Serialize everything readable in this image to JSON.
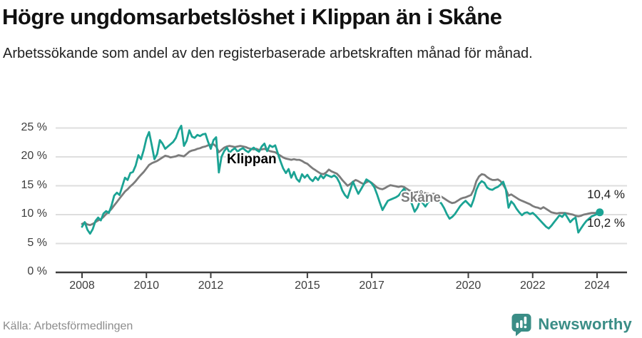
{
  "header": {
    "title": "Högre ungdomsarbetslöshet i Klippan än i Skåne",
    "subtitle": "Arbetssökande som andel av den registerbaserade arbetskraften månad för månad."
  },
  "footer": {
    "source": "Källa: Arbetsförmedlingen",
    "brand": "Newsworthy"
  },
  "colors": {
    "klippan_line": "#1ba394",
    "skane_line": "#7c7c7c",
    "brand_teal": "#3a8d86",
    "gridline": "#dedede",
    "axis": "#3d3d3d",
    "title_text": "#111111",
    "source_text": "#8c8c8c"
  },
  "chart_data": {
    "type": "line",
    "title": "Högre ungdomsarbetslöshet i Klippan än i Skåne",
    "subtitle": "Arbetssökande som andel av den registerbaserade arbetskraften månad för månad.",
    "x_start": "2008-01",
    "x_end": "2024-02",
    "x_frequency": "monthly",
    "ylim": [
      0,
      26
    ],
    "grid": true,
    "legend_position": "inline",
    "y_ticks": [
      {
        "value": 25,
        "label": "25 %"
      },
      {
        "value": 20,
        "label": "20 %"
      },
      {
        "value": 15,
        "label": "15 %"
      },
      {
        "value": 10,
        "label": "10 %"
      },
      {
        "value": 5,
        "label": "5 %"
      },
      {
        "value": 0,
        "label": "0 %"
      }
    ],
    "x_ticks": [
      {
        "value": 2008,
        "label": "2008"
      },
      {
        "value": 2010,
        "label": "2010"
      },
      {
        "value": 2012,
        "label": "2012"
      },
      {
        "value": 2015,
        "label": "2015"
      },
      {
        "value": 2017,
        "label": "2017"
      },
      {
        "value": 2020,
        "label": "2020"
      },
      {
        "value": 2022,
        "label": "2022"
      },
      {
        "value": 2024,
        "label": "2024"
      }
    ],
    "series": [
      {
        "name": "Klippan",
        "color": "#1ba394",
        "end_label": "10,4 %",
        "end_value": 10.4,
        "end_dot": true,
        "values": [
          7.9,
          8.7,
          7.4,
          6.7,
          7.5,
          8.9,
          9.5,
          9.0,
          10.2,
          10.6,
          10.3,
          11.6,
          13.3,
          13.8,
          13.4,
          14.9,
          16.4,
          16.0,
          17.2,
          17.4,
          18.5,
          20.3,
          19.6,
          21.2,
          23.2,
          24.3,
          22.0,
          19.6,
          20.5,
          22.9,
          22.3,
          21.4,
          21.8,
          22.2,
          22.6,
          23.3,
          24.6,
          25.4,
          21.9,
          22.8,
          24.6,
          23.5,
          23.3,
          23.8,
          23.6,
          23.9,
          24.0,
          22.6,
          21.4,
          22.9,
          23.4,
          17.3,
          20.0,
          21.0,
          21.6,
          20.7,
          21.2,
          21.5,
          20.9,
          21.3,
          21.5,
          21.1,
          20.8,
          21.3,
          21.6,
          21.2,
          20.9,
          21.8,
          22.3,
          21.0,
          22.0,
          21.7,
          22.0,
          20.6,
          19.2,
          18.0,
          17.2,
          17.9,
          16.4,
          17.4,
          16.2,
          15.7,
          17.0,
          16.4,
          16.9,
          16.2,
          15.8,
          16.5,
          16.0,
          16.8,
          16.3,
          16.9,
          16.7,
          16.5,
          16.8,
          16.4,
          15.5,
          14.2,
          13.4,
          12.9,
          14.3,
          15.7,
          14.6,
          13.6,
          14.4,
          15.2,
          16.1,
          15.8,
          15.4,
          14.7,
          13.5,
          12.1,
          10.8,
          11.6,
          12.4,
          12.6,
          12.8,
          13.0,
          13.3,
          13.9,
          14.5,
          13.8,
          12.9,
          11.8,
          10.5,
          11.2,
          12.4,
          12.0,
          11.4,
          12.1,
          12.6,
          12.9,
          12.8,
          12.4,
          11.9,
          11.1,
          10.1,
          9.3,
          9.6,
          10.1,
          10.8,
          11.5,
          12.0,
          12.4,
          11.9,
          11.4,
          12.6,
          14.3,
          15.3,
          15.8,
          15.5,
          14.7,
          14.4,
          14.3,
          14.6,
          14.8,
          15.2,
          15.7,
          14.4,
          11.2,
          12.3,
          11.8,
          11.0,
          10.4,
          9.9,
          10.3,
          10.4,
          10.1,
          10.3,
          9.9,
          9.4,
          8.9,
          8.4,
          7.9,
          7.6,
          8.1,
          8.7,
          9.3,
          9.9,
          9.6,
          10.2,
          9.5,
          8.7,
          9.2,
          9.5,
          6.9,
          7.6,
          8.3,
          8.9,
          9.3,
          9.7,
          9.9,
          10.1,
          10.4
        ]
      },
      {
        "name": "Skåne",
        "color": "#7c7c7c",
        "end_label": "10,2 %",
        "end_value": 10.2,
        "end_dot": false,
        "values": [
          8.4,
          8.6,
          8.3,
          8.2,
          8.4,
          8.7,
          9.0,
          9.2,
          9.6,
          10.1,
          10.5,
          11.0,
          11.6,
          12.2,
          12.8,
          13.4,
          14.0,
          14.4,
          14.9,
          15.3,
          15.8,
          16.4,
          16.9,
          17.4,
          18.0,
          18.6,
          18.9,
          19.1,
          19.3,
          19.6,
          19.9,
          20.2,
          20.1,
          19.9,
          20.0,
          20.1,
          20.3,
          20.2,
          20.1,
          20.5,
          20.9,
          21.1,
          21.2,
          21.4,
          21.5,
          21.7,
          21.8,
          22.0,
          22.1,
          22.2,
          21.8,
          20.8,
          21.2,
          21.6,
          21.8,
          21.9,
          21.8,
          21.7,
          21.8,
          21.9,
          21.8,
          21.7,
          21.5,
          21.4,
          21.3,
          21.4,
          21.2,
          21.3,
          21.4,
          21.2,
          21.0,
          20.9,
          20.8,
          20.5,
          20.2,
          19.9,
          19.7,
          19.6,
          19.5,
          19.6,
          19.5,
          19.5,
          19.3,
          19.0,
          18.8,
          18.4,
          18.0,
          17.7,
          17.4,
          17.1,
          17.0,
          17.3,
          17.8,
          17.5,
          17.3,
          17.1,
          16.6,
          16.0,
          15.5,
          15.0,
          15.3,
          15.7,
          16.0,
          15.8,
          15.5,
          15.3,
          15.6,
          15.8,
          15.5,
          15.1,
          14.7,
          14.5,
          14.4,
          14.6,
          14.9,
          15.1,
          15.0,
          14.9,
          14.8,
          14.9,
          14.8,
          14.5,
          14.2,
          14.0,
          13.8,
          13.9,
          14.1,
          13.9,
          13.7,
          13.6,
          13.5,
          13.6,
          13.5,
          13.3,
          13.1,
          12.8,
          12.5,
          12.2,
          12.0,
          12.1,
          12.4,
          12.7,
          12.9,
          13.0,
          13.2,
          13.4,
          14.3,
          15.8,
          16.6,
          17.0,
          16.9,
          16.5,
          16.2,
          16.0,
          16.0,
          16.1,
          15.8,
          15.2,
          14.4,
          13.3,
          13.5,
          13.2,
          12.9,
          12.6,
          12.4,
          12.2,
          12.0,
          11.8,
          11.5,
          11.3,
          11.2,
          11.0,
          11.3,
          11.0,
          10.7,
          10.4,
          10.3,
          10.2,
          10.3,
          10.3,
          10.3,
          10.2,
          10.1,
          10.0,
          9.8,
          9.7,
          9.8,
          10.0,
          10.1,
          10.2,
          10.3,
          10.3,
          10.3,
          10.2
        ]
      }
    ]
  }
}
